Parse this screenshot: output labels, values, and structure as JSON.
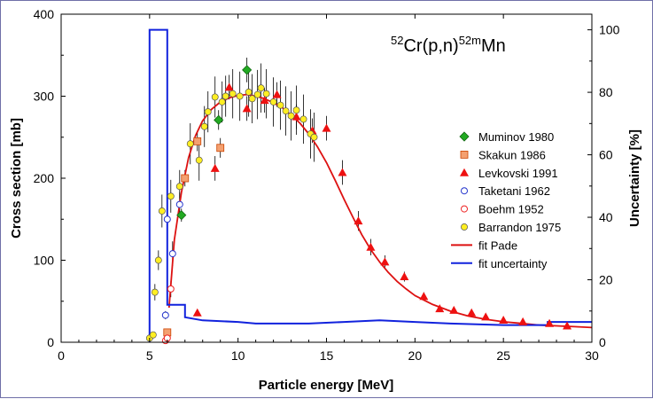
{
  "chart_data": {
    "type": "scatter",
    "title": {
      "pre_sup": "52",
      "main": "Cr(p,n)",
      "mid_sup": "52m",
      "end": "Mn"
    },
    "xlabel": "Particle  energy [MeV]",
    "ylabel": "Cross section [mb]",
    "y2label": "Uncertainty [%]",
    "xlim": [
      0,
      30
    ],
    "ylim": [
      0,
      400
    ],
    "y2lim": [
      0,
      105
    ],
    "x_ticks": [
      "0",
      "5",
      "10",
      "15",
      "20",
      "25",
      "30"
    ],
    "y_ticks": [
      "0",
      "100",
      "200",
      "300",
      "400"
    ],
    "y2_ticks": [
      "0",
      "20",
      "40",
      "60",
      "80",
      "100"
    ],
    "grid": false,
    "legend_position": "right",
    "series": [
      {
        "name": "Muminov 1980",
        "marker": "diamond",
        "color": "#22aa22",
        "points": [
          [
            6.8,
            155,
            8
          ],
          [
            8.9,
            271,
            12
          ],
          [
            10.5,
            332,
            15
          ]
        ]
      },
      {
        "name": "Skakun 1986",
        "marker": "square",
        "color": "#f4a070",
        "points": [
          [
            6.0,
            12,
            4
          ],
          [
            7.0,
            200,
            10
          ],
          [
            7.7,
            245,
            12
          ],
          [
            9.0,
            237,
            12
          ]
        ]
      },
      {
        "name": "Levkovski 1991",
        "marker": "triangle",
        "color": "#ee1111",
        "points": [
          [
            7.7,
            36,
            4
          ],
          [
            8.7,
            212,
            15
          ],
          [
            9.5,
            311,
            15
          ],
          [
            10.5,
            285,
            15
          ],
          [
            11.5,
            295,
            15
          ],
          [
            12.2,
            302,
            15
          ],
          [
            13.3,
            275,
            15
          ],
          [
            14.2,
            258,
            15
          ],
          [
            15.0,
            261,
            15
          ],
          [
            15.9,
            207,
            15
          ],
          [
            16.8,
            148,
            12
          ],
          [
            17.5,
            116,
            10
          ],
          [
            18.3,
            98,
            8
          ],
          [
            19.4,
            80,
            6
          ],
          [
            20.5,
            56,
            5
          ],
          [
            21.4,
            41,
            4
          ],
          [
            22.2,
            39,
            3
          ],
          [
            23.2,
            36,
            3
          ],
          [
            24.0,
            31,
            3
          ],
          [
            25.0,
            27,
            3
          ],
          [
            26.1,
            25,
            3
          ],
          [
            27.6,
            23,
            3
          ],
          [
            28.6,
            20,
            2
          ]
        ]
      },
      {
        "name": "Taketani 1962",
        "marker": "open-circle",
        "color": "#2233cc",
        "points": [
          [
            5.9,
            33,
            5
          ],
          [
            6.0,
            150,
            18
          ],
          [
            6.3,
            108,
            15
          ],
          [
            6.7,
            168,
            15
          ]
        ]
      },
      {
        "name": "Boehm 1952",
        "marker": "open-circle",
        "color": "#ee2222",
        "points": [
          [
            5.9,
            2,
            2
          ],
          [
            6.0,
            5,
            3
          ],
          [
            6.2,
            65,
            10
          ]
        ]
      },
      {
        "name": "Barrandon 1975",
        "marker": "circle",
        "color": "#ffee22",
        "points": [
          [
            5.0,
            5,
            2
          ],
          [
            5.2,
            9,
            3
          ],
          [
            5.3,
            61,
            10
          ],
          [
            5.5,
            100,
            12
          ],
          [
            5.7,
            160,
            20
          ],
          [
            6.2,
            178,
            20
          ],
          [
            6.7,
            190,
            20
          ],
          [
            7.3,
            242,
            25
          ],
          [
            7.8,
            222,
            25
          ],
          [
            8.1,
            263,
            25
          ],
          [
            8.3,
            281,
            25
          ],
          [
            8.7,
            299,
            25
          ],
          [
            9.1,
            293,
            25
          ],
          [
            9.3,
            300,
            25
          ],
          [
            9.7,
            303,
            30
          ],
          [
            10.1,
            300,
            30
          ],
          [
            10.6,
            305,
            30
          ],
          [
            10.8,
            297,
            30
          ],
          [
            11.1,
            302,
            30
          ],
          [
            11.3,
            310,
            30
          ],
          [
            11.6,
            303,
            30
          ],
          [
            12.0,
            293,
            30
          ],
          [
            12.4,
            289,
            30
          ],
          [
            12.7,
            282,
            30
          ],
          [
            13.0,
            276,
            30
          ],
          [
            13.3,
            283,
            30
          ],
          [
            13.7,
            272,
            30
          ],
          [
            14.1,
            254,
            30
          ],
          [
            14.3,
            250,
            30
          ]
        ]
      },
      {
        "name": "fit Pade",
        "type": "line",
        "color": "#dd1111",
        "x": [
          6.1,
          6.4,
          6.8,
          7.2,
          7.6,
          8.0,
          8.5,
          9.0,
          9.5,
          10.0,
          10.5,
          11.0,
          11.5,
          12.0,
          12.5,
          13.0,
          13.5,
          14.0,
          14.5,
          15.0,
          15.5,
          16.0,
          16.5,
          17.0,
          17.5,
          18.0,
          18.5,
          19.0,
          19.5,
          20.0,
          21.0,
          22.0,
          23.0,
          24.0,
          25.0,
          26.0,
          27.0,
          28.0,
          29.0,
          30.0
        ],
        "values": [
          42,
          125,
          183,
          225,
          252,
          270,
          284,
          293,
          298,
          301,
          302,
          300,
          297,
          292,
          286,
          277,
          267,
          254,
          238,
          219,
          197,
          174,
          152,
          131,
          113,
          98,
          85,
          74,
          65,
          57,
          46,
          38,
          32,
          28,
          25,
          23,
          21,
          20,
          19,
          18
        ]
      },
      {
        "name": "fit uncertainty",
        "type": "step",
        "axis": "right",
        "color": "#1122dd",
        "x": [
          5.0,
          5.0,
          6.0,
          6.0,
          7.0,
          7.0,
          8.0,
          10.0,
          11.0,
          12.0,
          14.0,
          16.0,
          18.0,
          20.0,
          22.0,
          25.0,
          27.5,
          27.5,
          30.0
        ],
        "values": [
          0,
          100,
          100,
          12,
          12,
          8,
          7,
          6.5,
          6,
          6,
          6,
          6.5,
          7,
          6.5,
          6,
          5.5,
          5.5,
          6.5,
          6.5
        ]
      }
    ]
  }
}
